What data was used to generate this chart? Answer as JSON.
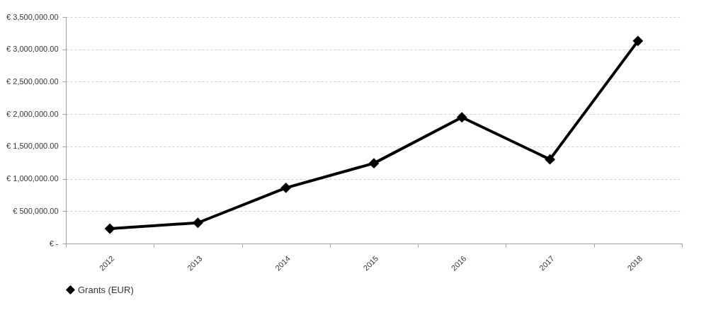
{
  "chart_data": {
    "type": "line",
    "categories": [
      "2012",
      "2013",
      "2014",
      "2015",
      "2016",
      "2017",
      "2018"
    ],
    "series": [
      {
        "name": "Grants (EUR)",
        "color": "#000000",
        "values": [
          230000,
          320000,
          860000,
          1240000,
          1950000,
          1300000,
          3130000
        ]
      }
    ],
    "ylim": [
      0,
      3500000
    ],
    "yticks": [
      {
        "value": 0,
        "label": "€ -"
      },
      {
        "value": 500000,
        "label": "€ 500,000.00"
      },
      {
        "value": 1000000,
        "label": "€ 1,000,000.00"
      },
      {
        "value": 1500000,
        "label": "€ 1,500,000.00"
      },
      {
        "value": 2000000,
        "label": "€ 2,000,000.00"
      },
      {
        "value": 2500000,
        "label": "€ 2,500,000.00"
      },
      {
        "value": 3000000,
        "label": "€ 3,000,000.00"
      },
      {
        "value": 3500000,
        "label": "€ 3,500,000.00"
      }
    ],
    "grid": "y",
    "legend": "bottom",
    "marker": "diamond",
    "line_style": "solid"
  }
}
